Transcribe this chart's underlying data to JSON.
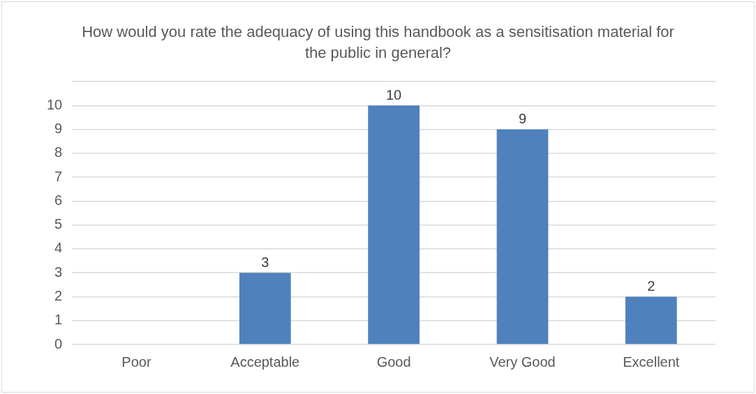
{
  "chart_data": {
    "type": "bar",
    "title": "How would you rate the adequacy of using this handbook as a sensitisation material for the public in general?",
    "categories": [
      "Poor",
      "Acceptable",
      "Good",
      "Very Good",
      "Excellent"
    ],
    "values": [
      0,
      3,
      10,
      9,
      2
    ],
    "value_labels": [
      null,
      "3",
      "10",
      "9",
      "2"
    ],
    "color": "#4f81bd",
    "ylim": [
      0,
      11
    ],
    "yticks": [
      0,
      1,
      2,
      3,
      4,
      5,
      6,
      7,
      8,
      9,
      10,
      {
        "value": 11,
        "label": null
      }
    ],
    "grid": "y"
  }
}
